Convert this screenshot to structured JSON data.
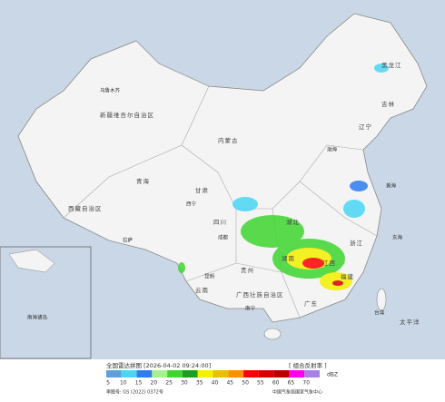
{
  "map": {
    "title": "全国雷达拼图 [2026-04-02 09:24:00]",
    "product": "[ 组合反射率 ]",
    "unit": "dBZ",
    "approval": "审图号: GS (2022) 0372号",
    "credit": "中国气象局国家气象中心",
    "legend": [
      {
        "value": 5,
        "color": "#5f9fdc"
      },
      {
        "value": 10,
        "color": "#4ad6f5"
      },
      {
        "value": 15,
        "color": "#2f7cf0"
      },
      {
        "value": 20,
        "color": "#a6f28e"
      },
      {
        "value": 25,
        "color": "#3fd631"
      },
      {
        "value": 30,
        "color": "#1e9e1e"
      },
      {
        "value": 35,
        "color": "#f5f000"
      },
      {
        "value": 40,
        "color": "#e8c000"
      },
      {
        "value": 45,
        "color": "#ff9000"
      },
      {
        "value": 50,
        "color": "#ff0000"
      },
      {
        "value": 55,
        "color": "#d60000"
      },
      {
        "value": 60,
        "color": "#b80000"
      },
      {
        "value": 65,
        "color": "#ff00f0"
      },
      {
        "value": 70,
        "color": "#a880e8"
      }
    ],
    "labels": [
      "新疆维吾尔自治区",
      "西藏自治区",
      "青海",
      "内蒙古",
      "黑龙江",
      "吉林",
      "辽宁",
      "甘肃",
      "四川",
      "云南",
      "贵州",
      "湖南",
      "湖北",
      "江西",
      "浙江",
      "福建",
      "广东",
      "广西壮族自治区",
      "乌鲁木齐",
      "拉萨",
      "西宁",
      "成都",
      "昆明",
      "南宁",
      "台湾",
      "渤海",
      "黄海",
      "东海",
      "太平洋",
      "南海诸岛"
    ]
  }
}
